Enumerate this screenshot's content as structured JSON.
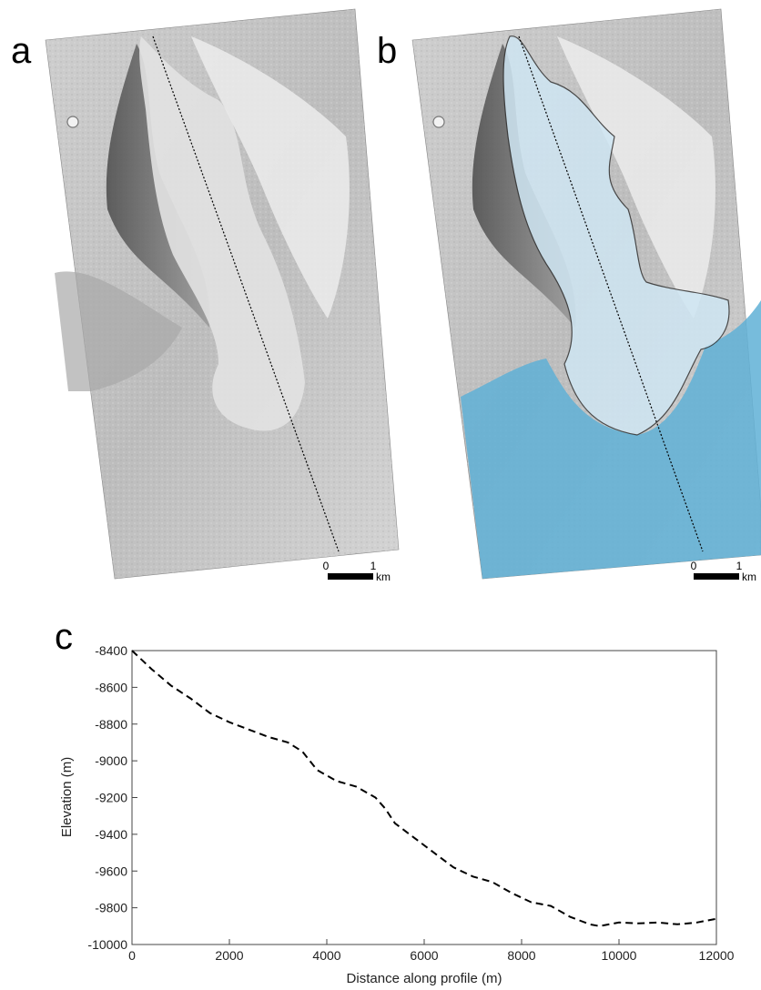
{
  "panels": {
    "a": {
      "label": "a"
    },
    "b": {
      "label": "b"
    },
    "c": {
      "label": "c"
    }
  },
  "scale_bar": {
    "zero": "0",
    "one": "1",
    "unit": "km"
  },
  "colors": {
    "water_overlay": "#5fb0d6",
    "glacier_overlay": "#cfe6f3",
    "profile_line": "#000000"
  },
  "chart_data": {
    "type": "line",
    "title": "",
    "xlabel": "Distance along profile (m)",
    "ylabel": "Elevation (m)",
    "xlim": [
      0,
      12000
    ],
    "ylim": [
      -10000,
      -8400
    ],
    "xticks": [
      0,
      2000,
      4000,
      6000,
      8000,
      10000,
      12000
    ],
    "yticks": [
      -8400,
      -8600,
      -8800,
      -9000,
      -9200,
      -9400,
      -9600,
      -9800,
      -10000
    ],
    "grid": false,
    "line_style": "dashed",
    "series": [
      {
        "x": [
          0,
          400,
          800,
          1200,
          1600,
          2000,
          2400,
          2800,
          3200,
          3500,
          3800,
          4200,
          4600,
          5000,
          5200,
          5400,
          5800,
          6200,
          6600,
          7000,
          7400,
          7800,
          8200,
          8600,
          9000,
          9400,
          9600,
          10000,
          10400,
          10800,
          11200,
          11600,
          12000
        ],
        "y": [
          -8400,
          -8500,
          -8590,
          -8660,
          -8740,
          -8790,
          -8830,
          -8870,
          -8900,
          -8950,
          -9050,
          -9110,
          -9140,
          -9200,
          -9260,
          -9340,
          -9420,
          -9500,
          -9580,
          -9630,
          -9660,
          -9720,
          -9770,
          -9790,
          -9850,
          -9890,
          -9900,
          -9880,
          -9885,
          -9880,
          -9890,
          -9880,
          -9860
        ]
      }
    ]
  }
}
